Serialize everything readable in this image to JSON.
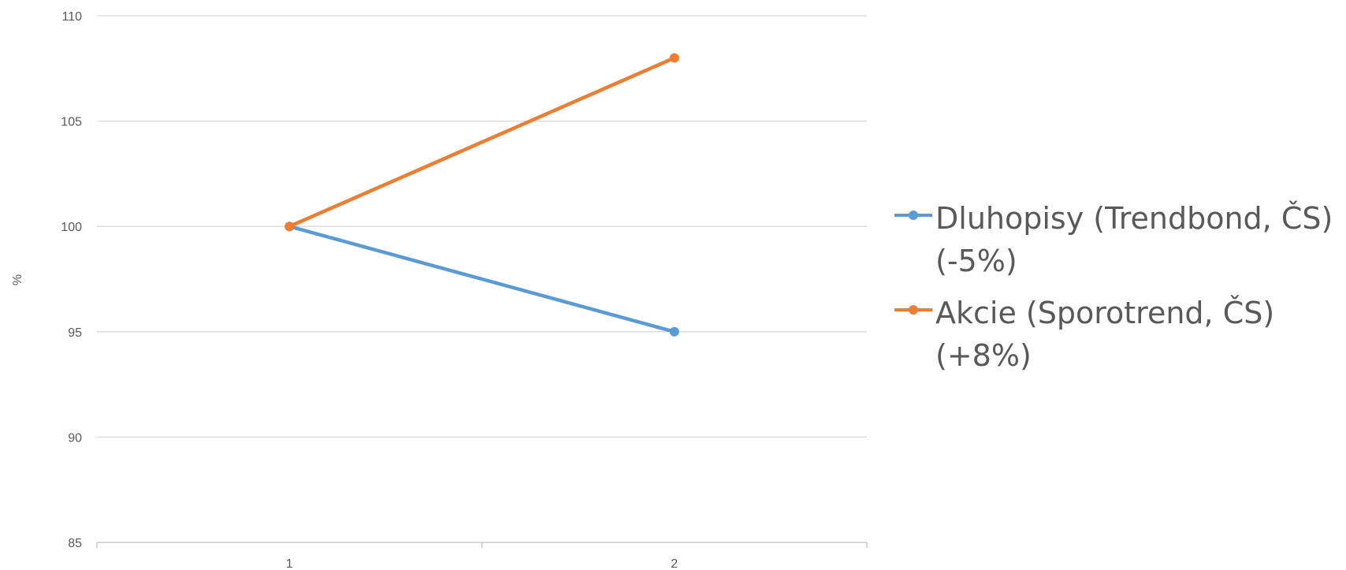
{
  "chart_data": {
    "type": "line",
    "x": [
      1,
      2
    ],
    "series": [
      {
        "name": "Dluhopisy (Trendbond, ČS) (-5%)",
        "values": [
          100,
          95
        ],
        "color": "#5B9BD5"
      },
      {
        "name": "Akcie (Sporotrend, ČS) (+8%)",
        "values": [
          100,
          108
        ],
        "color": "#ED7D31"
      }
    ],
    "title": "",
    "xlabel": "",
    "ylabel": "%",
    "ylim": [
      85,
      110
    ],
    "yticks": [
      85,
      90,
      95,
      100,
      105,
      110
    ],
    "xticks": [
      1,
      2
    ],
    "grid": true,
    "legend_position": "right"
  }
}
